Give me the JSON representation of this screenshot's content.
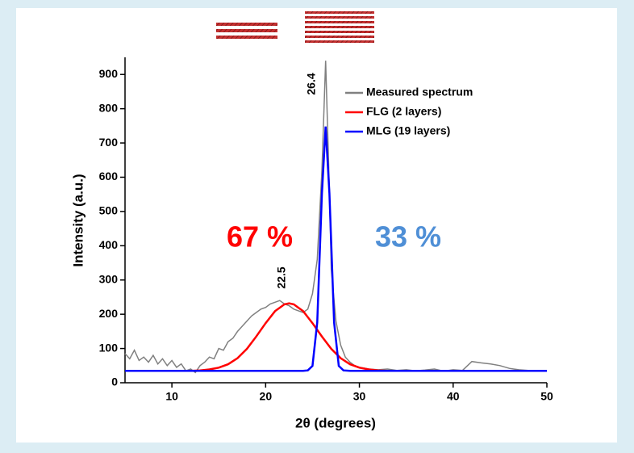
{
  "chart_data": {
    "type": "line",
    "xlabel": "2θ (degrees)",
    "ylabel": "Intensity (a.u.)",
    "xlim": [
      5,
      50
    ],
    "ylim": [
      0,
      950
    ],
    "xticks": [
      10,
      20,
      30,
      40,
      50
    ],
    "yticks": [
      0,
      100,
      200,
      300,
      400,
      500,
      600,
      700,
      800,
      900
    ],
    "legend": "upper right",
    "annotations": [
      "26.4",
      "22.5",
      "67 %",
      "33 %"
    ],
    "annotation_colors": [
      "#000000",
      "#000000",
      "#ff0000",
      "#4f8fd6"
    ],
    "series": [
      {
        "name": "Measured spectrum",
        "color": "#808080",
        "x": [
          5,
          5.5,
          6,
          6.5,
          7,
          7.5,
          8,
          8.5,
          9,
          9.5,
          10,
          10.5,
          11,
          11.5,
          12,
          12.5,
          13,
          13.5,
          14,
          14.5,
          15,
          15.5,
          16,
          16.5,
          17,
          17.5,
          18,
          18.5,
          19,
          19.5,
          20,
          20.5,
          21,
          21.5,
          22,
          22.5,
          23,
          23.5,
          24,
          24.5,
          25,
          25.5,
          26,
          26.4,
          26.8,
          27,
          27.5,
          28,
          28.5,
          29,
          29.5,
          30,
          31,
          32,
          33,
          34,
          35,
          36,
          37,
          38,
          39,
          40,
          41,
          42,
          43,
          44,
          45,
          46,
          47,
          48,
          49,
          50
        ],
        "values": [
          85,
          70,
          95,
          65,
          75,
          60,
          80,
          55,
          70,
          50,
          65,
          45,
          55,
          35,
          40,
          30,
          50,
          60,
          75,
          70,
          100,
          95,
          120,
          130,
          150,
          165,
          180,
          195,
          205,
          215,
          220,
          230,
          235,
          240,
          230,
          225,
          215,
          210,
          205,
          215,
          260,
          360,
          620,
          940,
          560,
          330,
          180,
          110,
          75,
          60,
          50,
          45,
          40,
          38,
          40,
          36,
          38,
          35,
          37,
          40,
          34,
          38,
          36,
          62,
          58,
          55,
          50,
          42,
          38,
          36,
          34,
          35
        ]
      },
      {
        "name": "FLG (2 layers)",
        "color": "#ff0000",
        "x": [
          5,
          10,
          12,
          13,
          14,
          15,
          16,
          17,
          18,
          19,
          20,
          21,
          22,
          22.5,
          23,
          24,
          25,
          26,
          27,
          28,
          29,
          30,
          31,
          32,
          33,
          35,
          40,
          45,
          50
        ],
        "values": [
          35,
          35,
          35,
          36,
          39,
          44,
          54,
          72,
          99,
          135,
          174,
          209,
          229,
          232,
          229,
          209,
          174,
          135,
          99,
          72,
          54,
          44,
          39,
          36,
          35,
          35,
          35,
          35,
          35
        ]
      },
      {
        "name": "MLG (19 layers)",
        "color": "#0000ff",
        "x": [
          5,
          24,
          24.5,
          25,
          25.5,
          26,
          26.4,
          26.8,
          27.3,
          27.8,
          28.3,
          29,
          50
        ],
        "values": [
          35,
          35,
          36,
          49,
          176,
          553,
          748,
          553,
          176,
          49,
          36,
          35,
          35
        ]
      }
    ]
  }
}
